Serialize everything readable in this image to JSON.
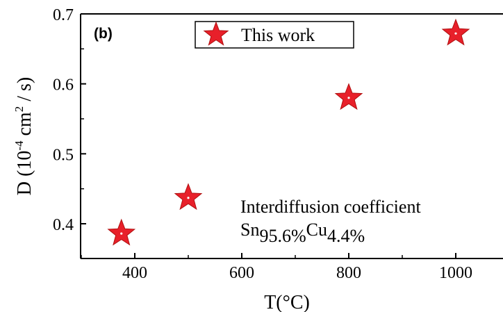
{
  "chart_data": {
    "type": "scatter",
    "panel_label": "(b)",
    "xlabel": "T(°C)",
    "ylabel": {
      "prefix": "D (10",
      "exp1": "-4",
      "mid": " cm",
      "exp2": "2",
      "suffix": " / s)"
    },
    "xlim": [
      300,
      1100
    ],
    "ylim": [
      0.35,
      0.7
    ],
    "x_ticks": [
      400,
      600,
      800,
      1000
    ],
    "x_tick_labels": [
      "400",
      "600",
      "800",
      "1000"
    ],
    "y_ticks": [
      0.4,
      0.5,
      0.6,
      0.7
    ],
    "y_tick_labels": [
      "0.4",
      "0.5",
      "0.6",
      "0.7"
    ],
    "grid": false,
    "legend_position": "top-center",
    "series": [
      {
        "name": "This work",
        "marker": "star",
        "color": "#e8202a",
        "points": [
          {
            "x": 375,
            "y": 0.386
          },
          {
            "x": 500,
            "y": 0.437
          },
          {
            "x": 800,
            "y": 0.58
          },
          {
            "x": 1000,
            "y": 0.672
          }
        ]
      }
    ],
    "annotation": {
      "line1": "Interdiffusion coefficient",
      "sn": "Sn",
      "sn_sub": "95.6%",
      "cu": "Cu",
      "cu_sub": "4.4%"
    }
  }
}
